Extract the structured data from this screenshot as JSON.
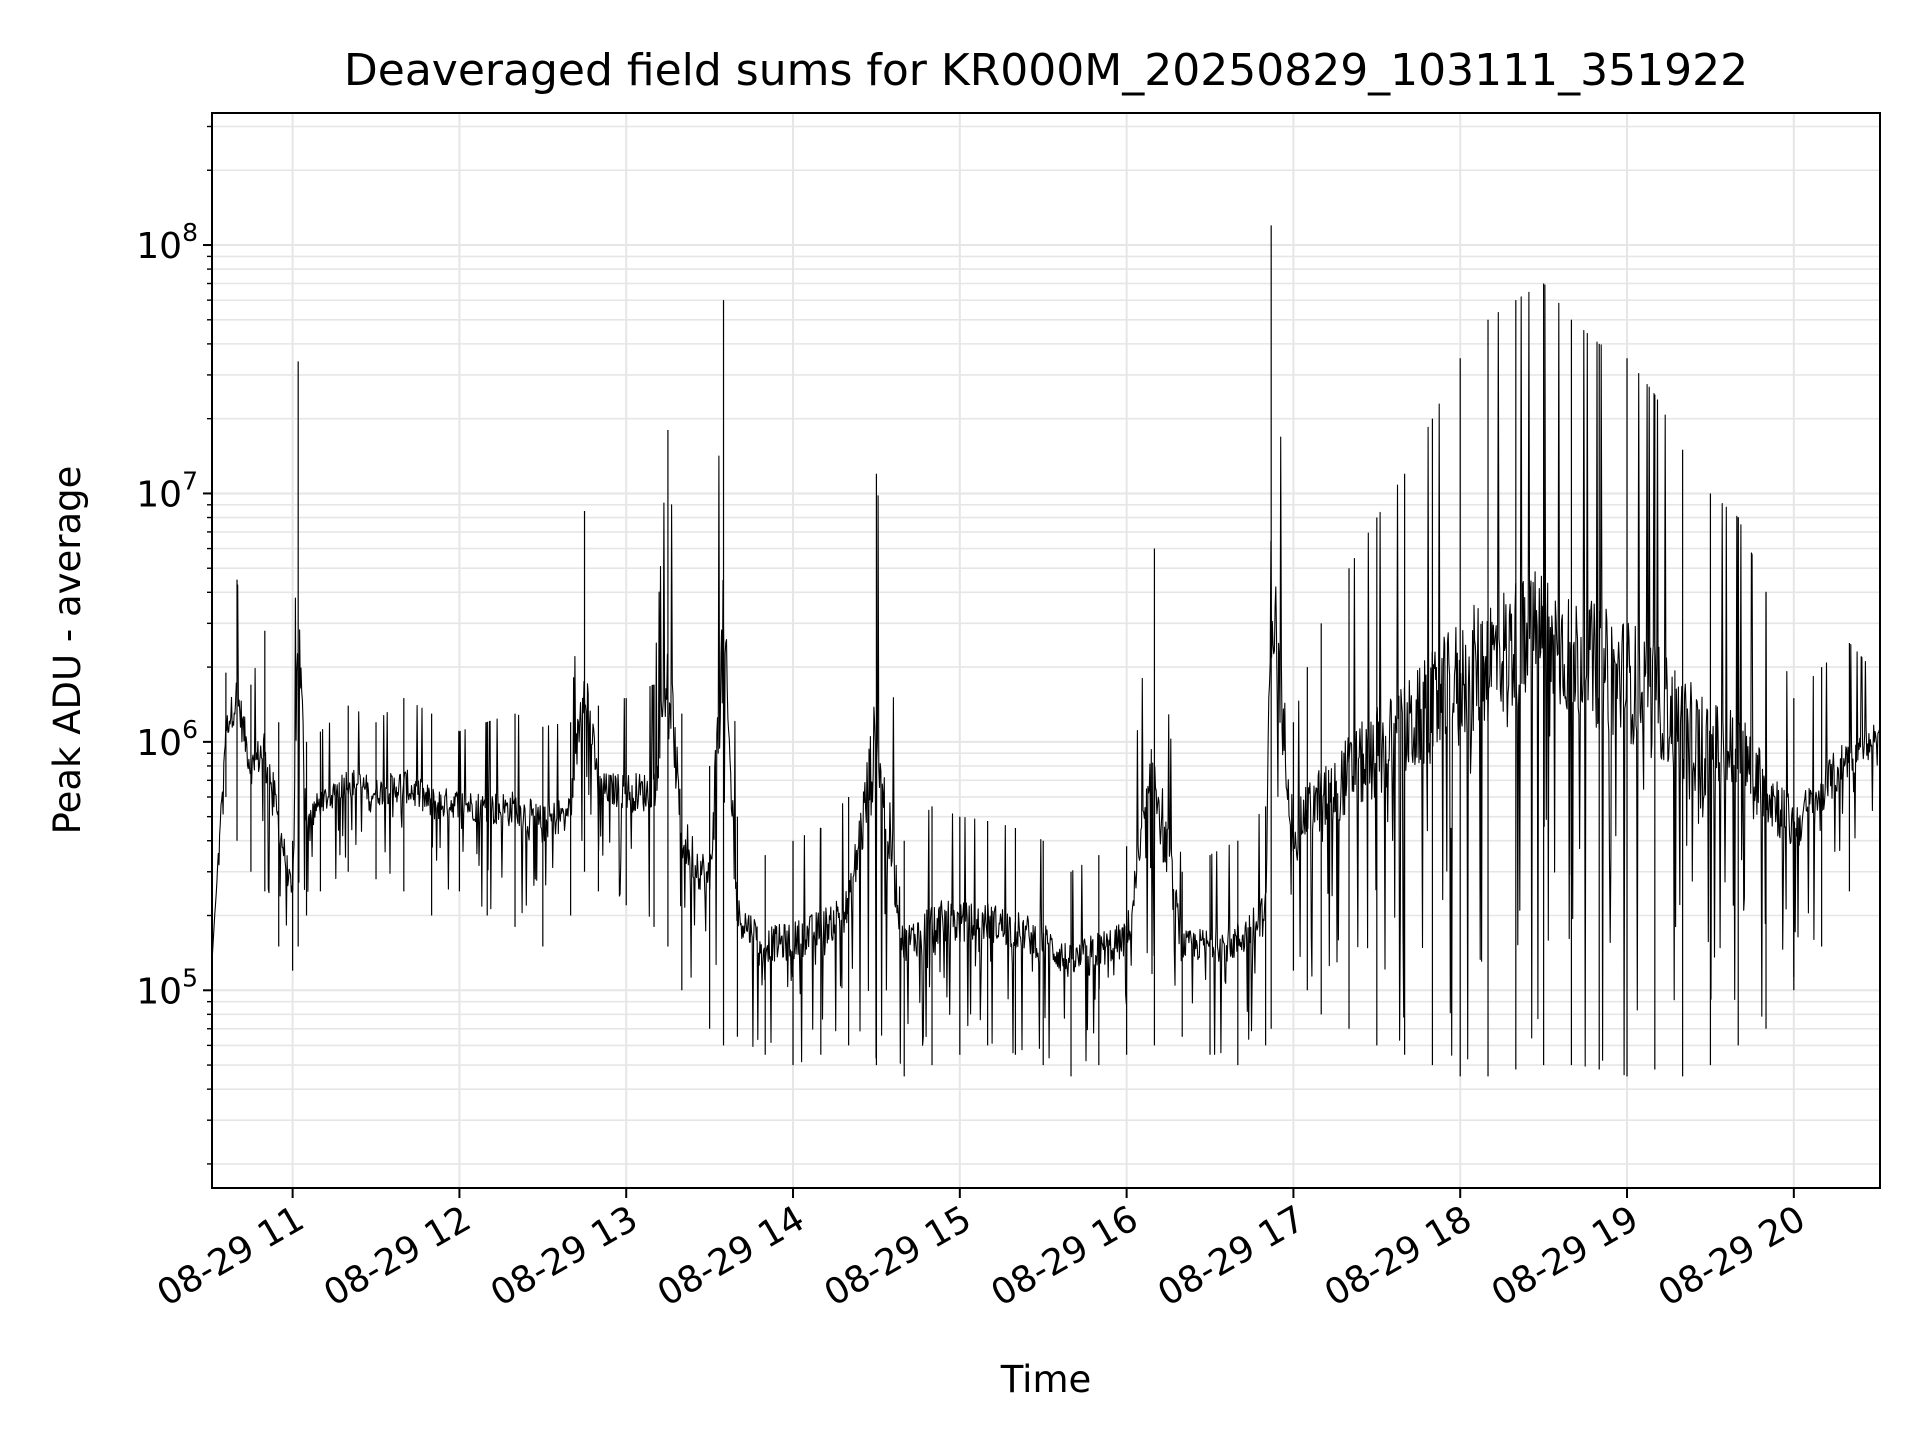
{
  "chart_data": {
    "type": "line",
    "title": "Deaveraged field sums for KR000M_20250829_103111_351922",
    "xlabel": "Time",
    "ylabel": "Peak ADU - average",
    "x_scale": "time",
    "y_scale": "log",
    "xlim": [
      "2025-08-29 10:31",
      "2025-08-29 20:31"
    ],
    "ylim": [
      16000,
      340000000
    ],
    "x_ticks": [
      "08-29 11",
      "08-29 12",
      "08-29 13",
      "08-29 14",
      "08-29 15",
      "08-29 16",
      "08-29 17",
      "08-29 18",
      "08-29 19",
      "08-29 20"
    ],
    "y_ticks": [
      {
        "base": "10",
        "exp": "5",
        "value": 100000
      },
      {
        "base": "10",
        "exp": "6",
        "value": 1000000
      },
      {
        "base": "10",
        "exp": "7",
        "value": 10000000
      },
      {
        "base": "10",
        "exp": "8",
        "value": 100000000
      }
    ],
    "grid": true,
    "legend": "none",
    "line_color": "#000000",
    "grid_color": "#e6e6e6",
    "series": [
      {
        "x": [
          "2025-08-29 10:31",
          "2025-08-29 10:36",
          "2025-08-29 10:40",
          "2025-08-29 10:45",
          "2025-08-29 10:50",
          "2025-08-29 10:55",
          "2025-08-29 11:00",
          "2025-08-29 11:02",
          "2025-08-29 11:05",
          "2025-08-29 11:10",
          "2025-08-29 11:20",
          "2025-08-29 11:30",
          "2025-08-29 11:40",
          "2025-08-29 11:50",
          "2025-08-29 12:00",
          "2025-08-29 12:10",
          "2025-08-29 12:20",
          "2025-08-29 12:30",
          "2025-08-29 12:40",
          "2025-08-29 12:45",
          "2025-08-29 12:50",
          "2025-08-29 13:00",
          "2025-08-29 13:10",
          "2025-08-29 13:15",
          "2025-08-29 13:20",
          "2025-08-29 13:30",
          "2025-08-29 13:35",
          "2025-08-29 13:40",
          "2025-08-29 13:50",
          "2025-08-29 14:00",
          "2025-08-29 14:10",
          "2025-08-29 14:20",
          "2025-08-29 14:30",
          "2025-08-29 14:40",
          "2025-08-29 14:50",
          "2025-08-29 15:00",
          "2025-08-29 15:10",
          "2025-08-29 15:20",
          "2025-08-29 15:30",
          "2025-08-29 15:40",
          "2025-08-29 15:50",
          "2025-08-29 16:00",
          "2025-08-29 16:10",
          "2025-08-29 16:20",
          "2025-08-29 16:30",
          "2025-08-29 16:40",
          "2025-08-29 16:50",
          "2025-08-29 16:52",
          "2025-08-29 17:00",
          "2025-08-29 17:05",
          "2025-08-29 17:10",
          "2025-08-29 17:20",
          "2025-08-29 17:30",
          "2025-08-29 17:40",
          "2025-08-29 17:50",
          "2025-08-29 18:00",
          "2025-08-29 18:10",
          "2025-08-29 18:20",
          "2025-08-29 18:30",
          "2025-08-29 18:40",
          "2025-08-29 18:50",
          "2025-08-29 19:00",
          "2025-08-29 19:10",
          "2025-08-29 19:20",
          "2025-08-29 19:30",
          "2025-08-29 19:40",
          "2025-08-29 19:50",
          "2025-08-29 20:00",
          "2025-08-29 20:10",
          "2025-08-29 20:20",
          "2025-08-29 20:31"
        ],
        "y": [
          130000,
          1900000,
          4500000,
          1700000,
          2800000,
          1200000,
          400000,
          34000000,
          1000000,
          1100000,
          1400000,
          1200000,
          1500000,
          1300000,
          1100000,
          1200000,
          1300000,
          1150000,
          1200000,
          8500000,
          1400000,
          1500000,
          1700000,
          18000000,
          1300000,
          800000,
          60000000,
          500000,
          350000,
          400000,
          450000,
          600000,
          12000000,
          400000,
          550000,
          500000,
          480000,
          450000,
          400000,
          300000,
          350000,
          380000,
          6000000,
          300000,
          350000,
          400000,
          550000,
          120000000,
          1200000,
          2000000,
          3000000,
          5000000,
          8000000,
          12000000,
          20000000,
          35000000,
          50000000,
          60000000,
          70000000,
          50000000,
          40000000,
          35000000,
          25000000,
          15000000,
          10000000,
          8000000,
          4000000,
          1500000,
          2000000,
          2500000,
          1800000
        ],
        "y_min_envelope": [
          130000,
          600000,
          400000,
          300000,
          250000,
          150000,
          120000,
          150000,
          200000,
          250000,
          300000,
          280000,
          250000,
          200000,
          250000,
          200000,
          180000,
          150000,
          200000,
          300000,
          250000,
          220000,
          180000,
          150000,
          100000,
          70000,
          60000,
          65000,
          55000,
          50000,
          55000,
          60000,
          50000,
          45000,
          50000,
          55000,
          60000,
          55000,
          50000,
          45000,
          50000,
          55000,
          60000,
          65000,
          55000,
          50000,
          60000,
          70000,
          120000,
          100000,
          80000,
          70000,
          60000,
          55000,
          50000,
          45000,
          45000,
          48000,
          50000,
          50000,
          48000,
          45000,
          48000,
          45000,
          50000,
          60000,
          70000,
          100000,
          150000,
          250000,
          600000
        ]
      }
    ]
  }
}
